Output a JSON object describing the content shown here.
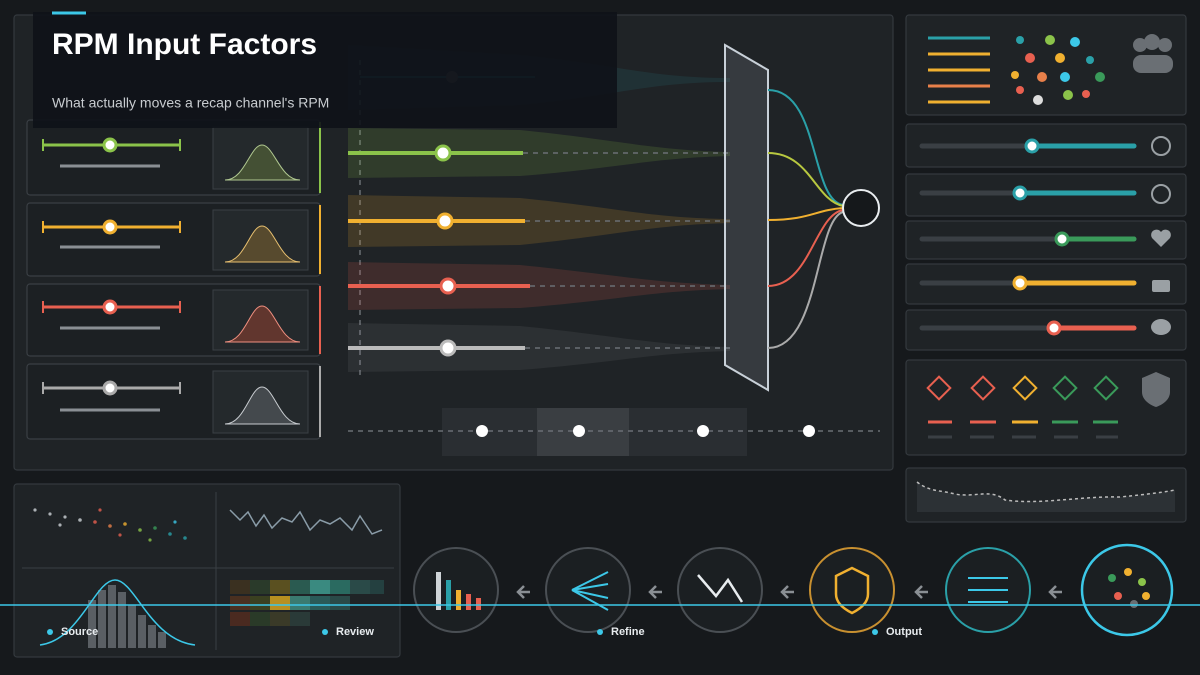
{
  "header": {
    "title": "RPM Input Factors",
    "subtitle": "What actually moves a recap channel's RPM"
  },
  "timeline": {
    "labels": [
      "Source",
      "Review",
      "Refine",
      "Output"
    ]
  }
}
